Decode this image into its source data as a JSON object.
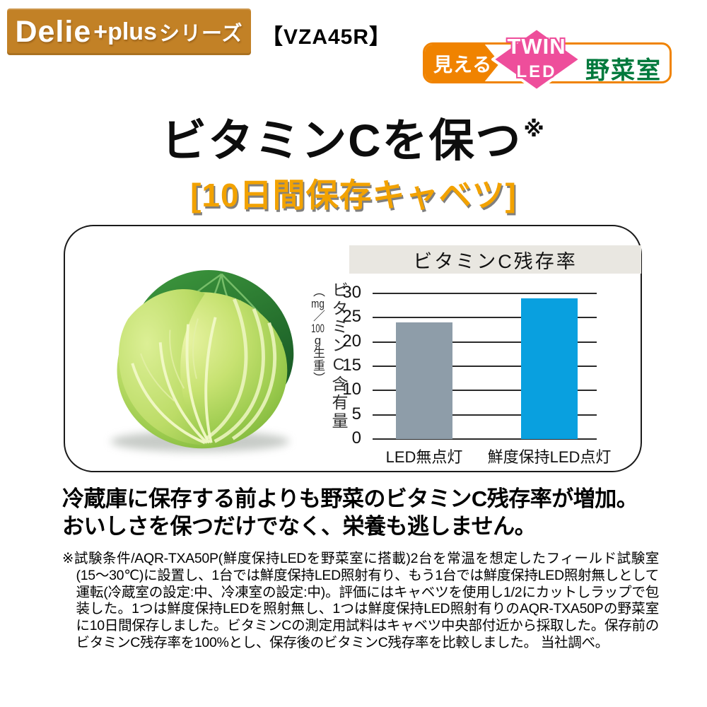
{
  "header": {
    "series_badge": {
      "brand": "Delie",
      "plus": "+plus",
      "series": "シリーズ"
    },
    "model": "【VZA45R】",
    "feature_badge": {
      "mieru": "見える",
      "twin": "TWIN",
      "led": "LED",
      "vegetable_room": "野菜室"
    }
  },
  "title": {
    "main": "ビタミンCを保つ",
    "note_mark": "※",
    "subtitle": "[10日間保存キャベツ]"
  },
  "chart_data": {
    "type": "bar",
    "title": "ビタミンC残存率",
    "ylabel": "ビタミンC含有量",
    "ylabel_unit": "（mg／100g生重）",
    "unit_parts": {
      "open": "（",
      "mg": "mg",
      "slash": "／",
      "n100": "100",
      "g": "g",
      "weight": "生重",
      "close": "）"
    },
    "categories": [
      "LED無点灯",
      "鮮度保持LED点灯"
    ],
    "values": [
      24,
      29
    ],
    "ylim": [
      0,
      30
    ],
    "yticks": [
      0,
      5,
      10,
      15,
      20,
      25,
      30
    ],
    "bar_colors": [
      "#8E9DA9",
      "#09A0DF"
    ],
    "grid": true,
    "legend_position": "none"
  },
  "description": {
    "line1": "冷蔵庫に保存する前よりも野菜のビタミンC残存率が増加。",
    "line2": "おいしさを保つだけでなく、栄養も逃しません。"
  },
  "footnote": "※試験条件/AQR-TXA50P(鮮度保持LEDを野菜室に搭載)2台を常温を想定したフィールド試験室(15〜30℃)に設置し、1台では鮮度保持LED照射有り、もう1台では鮮度保持LED照射無しとして運転(冷蔵室の設定:中、冷凍室の設定:中)。評価にはキャベツを使用し1/2にカットしラップで包装した。1つは鮮度保持LEDを照射無し、1つは鮮度保持LED照射有りのAQR-TXA50Pの野菜室に10日間保存しました。ビタミンCの測定用試料はキャベツ中央部付近から採取した。保存前のビタミンC残存率を100%とし、保存後のビタミンC残存率を比較しました。 当社調べ。",
  "colors": {
    "series_badge_bg": "#C28126",
    "feature_orange": "#F08300",
    "feature_pink": "#EE4E9B",
    "feature_green": "#00793C",
    "subtitle_orange": "#F2A200",
    "chart_header_bg": "#E9E7E1",
    "bar_gray": "#8E9DA9",
    "bar_blue": "#09A0DF"
  }
}
